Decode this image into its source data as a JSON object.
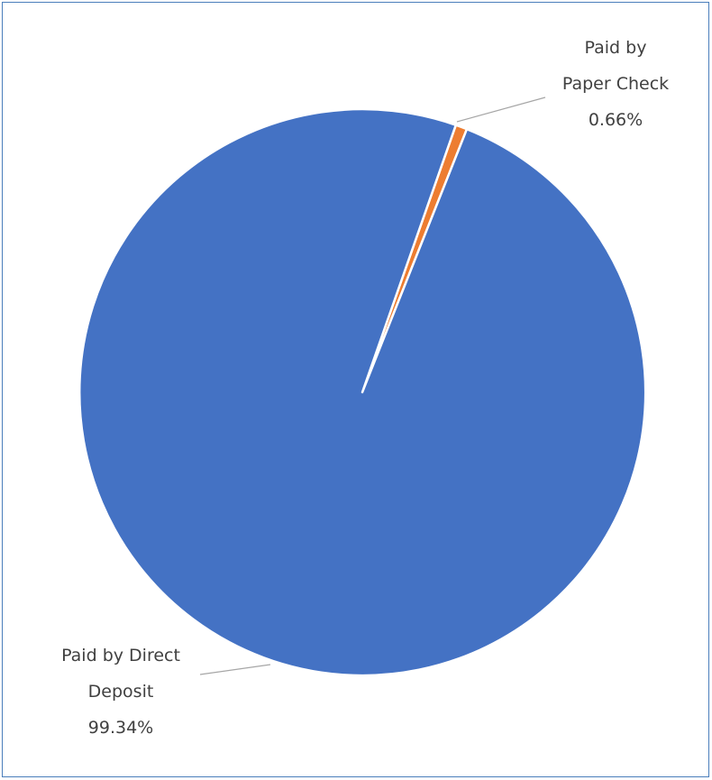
{
  "chart_data": {
    "type": "pie",
    "title": "",
    "slices": [
      {
        "label_line1": "Paid by Direct",
        "label_line2": "Deposit",
        "percent_label": "99.34%",
        "value": 99.34,
        "color": "#4472c4"
      },
      {
        "label_line1": "Paid by",
        "label_line2": "Paper Check",
        "percent_label": "0.66%",
        "value": 0.66,
        "color": "#ed7d31"
      }
    ]
  }
}
